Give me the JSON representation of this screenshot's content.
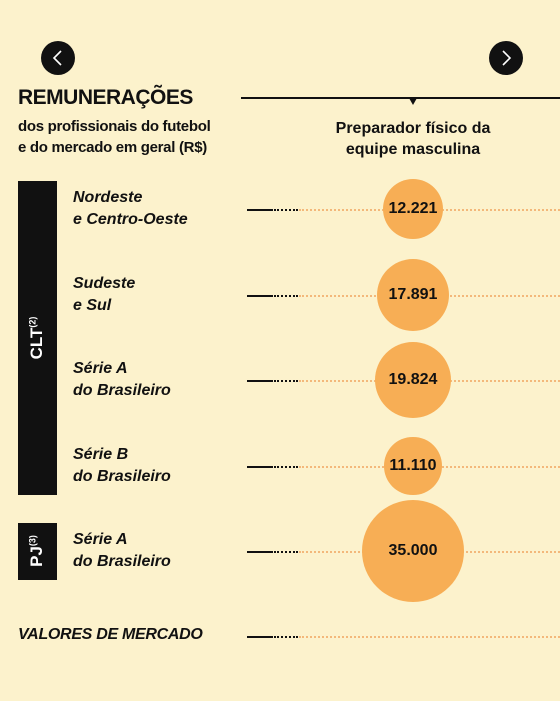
{
  "nav": {
    "prev_icon": "chevron-left-icon",
    "next_icon": "chevron-right-icon"
  },
  "header": {
    "title": "REMUNERAÇÕES",
    "subtitle_line1": "dos profissionais do futebol",
    "subtitle_line2": "e do mercado em geral (R$)"
  },
  "column": {
    "line1": "Preparador físico da",
    "line2": "equipe masculina"
  },
  "groups": [
    {
      "label": "CLT",
      "note": "(2)"
    },
    {
      "label": "PJ",
      "note": "(3)"
    }
  ],
  "market_label": "VALORES DE MERCADO",
  "colors": {
    "background": "#fcf2cc",
    "bubble": "#f7ae55",
    "ink": "#111111"
  },
  "chart_data": {
    "type": "bubble",
    "categories": [
      "Nordeste e Centro-Oeste",
      "Sudeste e Sul",
      "Série A do Brasileiro",
      "Série B do Brasileiro",
      "Série A do Brasileiro"
    ],
    "category_lines": [
      [
        "Nordeste",
        "e Centro-Oeste"
      ],
      [
        "Sudeste",
        "e Sul"
      ],
      [
        "Série A",
        "do Brasileiro"
      ],
      [
        "Série B",
        "do Brasileiro"
      ],
      [
        "Série A",
        "do Brasileiro"
      ]
    ],
    "values": [
      12221,
      17891,
      19824,
      11110,
      35000
    ],
    "value_labels": [
      "12.221",
      "17.891",
      "19.824",
      "11.110",
      "35.000"
    ],
    "groups": [
      "CLT",
      "CLT",
      "CLT",
      "CLT",
      "PJ"
    ],
    "market_value": null
  }
}
